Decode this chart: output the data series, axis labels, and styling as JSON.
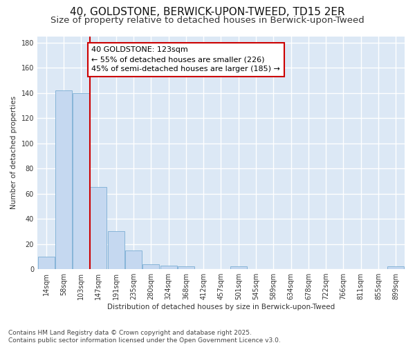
{
  "title": "40, GOLDSTONE, BERWICK-UPON-TWEED, TD15 2ER",
  "subtitle": "Size of property relative to detached houses in Berwick-upon-Tweed",
  "xlabel": "Distribution of detached houses by size in Berwick-upon-Tweed",
  "ylabel": "Number of detached properties",
  "categories": [
    "14sqm",
    "58sqm",
    "103sqm",
    "147sqm",
    "191sqm",
    "235sqm",
    "280sqm",
    "324sqm",
    "368sqm",
    "412sqm",
    "457sqm",
    "501sqm",
    "545sqm",
    "589sqm",
    "634sqm",
    "678sqm",
    "722sqm",
    "766sqm",
    "811sqm",
    "855sqm",
    "899sqm"
  ],
  "values": [
    10,
    142,
    140,
    65,
    30,
    15,
    4,
    3,
    2,
    0,
    0,
    2,
    0,
    0,
    0,
    0,
    0,
    0,
    0,
    0,
    2
  ],
  "bar_color": "#c5d8f0",
  "bar_edge_color": "#7badd4",
  "vline_x_idx": 2.5,
  "vline_color": "#cc0000",
  "annotation_text": "40 GOLDSTONE: 123sqm\n← 55% of detached houses are smaller (226)\n45% of semi-detached houses are larger (185) →",
  "annotation_box_color": "#ffffff",
  "annotation_box_edge_color": "#cc0000",
  "ylim": [
    0,
    185
  ],
  "yticks": [
    0,
    20,
    40,
    60,
    80,
    100,
    120,
    140,
    160,
    180
  ],
  "plot_bg_color": "#dce8f5",
  "fig_bg_color": "#ffffff",
  "grid_color": "#ffffff",
  "footnote": "Contains HM Land Registry data © Crown copyright and database right 2025.\nContains public sector information licensed under the Open Government Licence v3.0.",
  "title_fontsize": 11,
  "subtitle_fontsize": 9.5,
  "annot_fontsize": 8,
  "axis_fontsize": 7.5,
  "tick_fontsize": 7,
  "footnote_fontsize": 6.5
}
